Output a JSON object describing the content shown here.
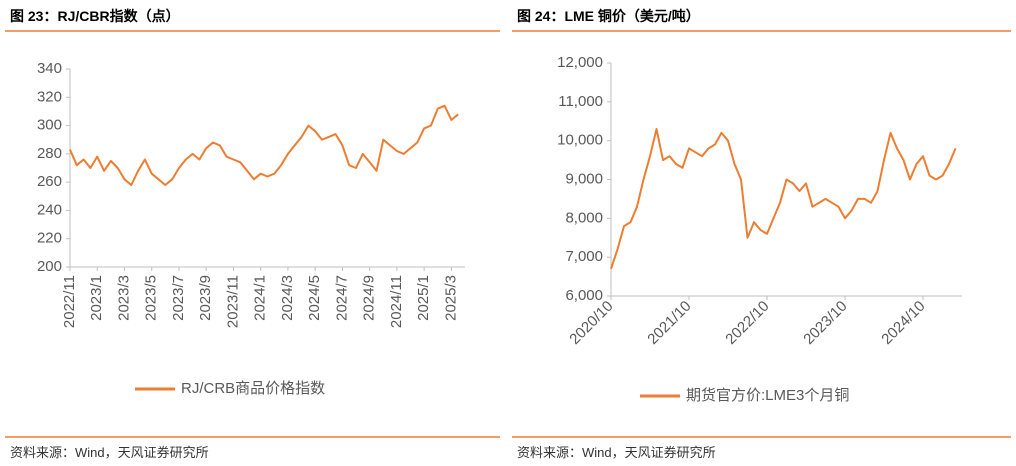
{
  "chart_data": [
    {
      "type": "line",
      "title": "图 23：RJ/CBR指数（点）",
      "source": "资料来源：Wind，天风证券研究所",
      "categories": [
        "2022/11",
        null,
        null,
        null,
        "2023/1",
        null,
        null,
        null,
        "2023/3",
        null,
        null,
        null,
        "2023/5",
        null,
        null,
        null,
        "2023/7",
        null,
        null,
        null,
        "2023/9",
        null,
        null,
        null,
        "2023/11",
        null,
        null,
        null,
        "2024/1",
        null,
        null,
        null,
        "2024/3",
        null,
        null,
        null,
        "2024/5",
        null,
        null,
        null,
        "2024/7",
        null,
        null,
        null,
        "2024/9",
        null,
        null,
        null,
        "2024/11",
        null,
        null,
        null,
        "2025/1",
        null,
        null,
        null,
        "2025/3",
        null
      ],
      "series": [
        {
          "name": "RJ/CRB商品价格指数",
          "color": "#ed7d31",
          "values": [
            283,
            272,
            276,
            270,
            278,
            268,
            275,
            270,
            262,
            258,
            268,
            276,
            266,
            262,
            258,
            262,
            270,
            276,
            280,
            276,
            284,
            288,
            286,
            278,
            276,
            274,
            268,
            262,
            266,
            264,
            266,
            272,
            280,
            286,
            292,
            300,
            296,
            290,
            292,
            294,
            286,
            272,
            270,
            280,
            274,
            268,
            290,
            286,
            282,
            280,
            284,
            288,
            298,
            300,
            312,
            314,
            304,
            308
          ]
        }
      ],
      "ylim": [
        200,
        340
      ],
      "yticks": [
        200,
        220,
        240,
        260,
        280,
        300,
        320,
        340
      ],
      "grid": false,
      "legend": "bottom"
    },
    {
      "type": "line",
      "title": "图 24：LME 铜价（美元/吨）",
      "source": "资料来源：Wind，天风证券研究所",
      "categories": [
        "2020/10",
        null,
        null,
        null,
        null,
        null,
        null,
        null,
        null,
        null,
        null,
        null,
        "2021/10",
        null,
        null,
        null,
        null,
        null,
        null,
        null,
        null,
        null,
        null,
        null,
        "2022/10",
        null,
        null,
        null,
        null,
        null,
        null,
        null,
        null,
        null,
        null,
        null,
        "2023/10",
        null,
        null,
        null,
        null,
        null,
        null,
        null,
        null,
        null,
        null,
        null,
        "2024/10",
        null,
        null,
        null,
        null,
        null
      ],
      "series": [
        {
          "name": "期货官方价:LME3个月铜",
          "color": "#ed7d31",
          "values": [
            6700,
            7200,
            7800,
            7900,
            8300,
            9000,
            9600,
            10300,
            9500,
            9600,
            9400,
            9300,
            9800,
            9700,
            9600,
            9800,
            9900,
            10200,
            10000,
            9400,
            9000,
            7500,
            7900,
            7700,
            7600,
            8000,
            8400,
            9000,
            8900,
            8700,
            8900,
            8300,
            8400,
            8500,
            8400,
            8300,
            8000,
            8200,
            8500,
            8500,
            8400,
            8700,
            9500,
            10200,
            9800,
            9500,
            9000,
            9400,
            9600,
            9100,
            9000,
            9100,
            9400,
            9800
          ]
        }
      ],
      "ylim": [
        6000,
        12000
      ],
      "yticks": [
        {
          "value": 6000,
          "label": "6,000"
        },
        {
          "value": 7000,
          "label": "7,000"
        },
        {
          "value": 8000,
          "label": "8,000"
        },
        {
          "value": 9000,
          "label": "9,000"
        },
        {
          "value": 10000,
          "label": "10,000"
        },
        {
          "value": 11000,
          "label": "11,000"
        },
        {
          "value": 12000,
          "label": "12,000"
        }
      ],
      "grid": false,
      "legend": "bottom"
    }
  ]
}
